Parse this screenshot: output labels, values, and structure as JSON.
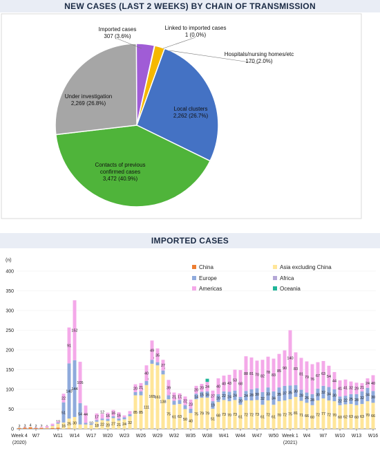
{
  "chart_data": [
    {
      "type": "pie",
      "title": "NEW CASES (LAST 2 WEEKS) BY CHAIN OF TRANSMISSION",
      "slices": [
        {
          "name": "Imported cases",
          "value": 307,
          "value_label": "307",
          "pct_label": "(3.6%)",
          "color": "#a05cd6"
        },
        {
          "name": "Linked to imported cases",
          "value": 1,
          "value_label": "1",
          "pct_label": "(0.0%)",
          "color": "#f2f2f2"
        },
        {
          "name": "Hospitals/nursing homes/etc",
          "value": 170,
          "value_label": "170",
          "pct_label": "(2.0%)",
          "color": "#f5b800"
        },
        {
          "name": "Local clusters",
          "value": 2262,
          "value_label": "2,262",
          "pct_label": "(26.7%)",
          "color": "#4472c4"
        },
        {
          "name": "Contacts of previous confirmed cases",
          "value": 3472,
          "value_label": "3,472",
          "pct_label": "(40.9%)",
          "color": "#4fb43a"
        },
        {
          "name": "Under investigation",
          "value": 2269,
          "value_label": "2,269",
          "pct_label": "(26.8%)",
          "color": "#a6a6a6"
        }
      ]
    },
    {
      "type": "bar",
      "stacked": true,
      "title": "IMPORTED CASES",
      "ylabel": "(n)",
      "ylim": [
        0,
        400
      ],
      "yticks": [
        0,
        50,
        100,
        150,
        200,
        250,
        300,
        350,
        400
      ],
      "xtick_labels": [
        {
          "i": 0,
          "label": "Week 4"
        },
        {
          "i": 3,
          "label": "W7"
        },
        {
          "i": 7,
          "label": "W11"
        },
        {
          "i": 10,
          "label": "W14"
        },
        {
          "i": 13,
          "label": "W17"
        },
        {
          "i": 16,
          "label": "W20"
        },
        {
          "i": 19,
          "label": "W23"
        },
        {
          "i": 22,
          "label": "W26"
        },
        {
          "i": 25,
          "label": "W29"
        },
        {
          "i": 28,
          "label": "W32"
        },
        {
          "i": 31,
          "label": "W35"
        },
        {
          "i": 34,
          "label": "W38"
        },
        {
          "i": 37,
          "label": "W41"
        },
        {
          "i": 40,
          "label": "W44"
        },
        {
          "i": 43,
          "label": "W47"
        },
        {
          "i": 46,
          "label": "W50"
        },
        {
          "i": 49,
          "label": "Week 1"
        },
        {
          "i": 52,
          "label": "W4"
        },
        {
          "i": 55,
          "label": "W7"
        },
        {
          "i": 58,
          "label": "W10"
        },
        {
          "i": 61,
          "label": "W13"
        },
        {
          "i": 64,
          "label": "W16"
        }
      ],
      "year_labels": [
        {
          "i": 0,
          "label": "(2020)"
        },
        {
          "i": 49,
          "label": "(2021)"
        }
      ],
      "legend_position": "top-right",
      "series": [
        {
          "name": "China",
          "color": "#ed7d31",
          "values": [
            2,
            3,
            4,
            2,
            2,
            1,
            2,
            3,
            0,
            1,
            0,
            0,
            0,
            0,
            0,
            0,
            0,
            0,
            0,
            0,
            0,
            0,
            0,
            0,
            0,
            0,
            0,
            0,
            0,
            0,
            0,
            0,
            0,
            0,
            0,
            0,
            0,
            0,
            0,
            0,
            0,
            0,
            0,
            0,
            0,
            0,
            0,
            0,
            0,
            0,
            0,
            0,
            0,
            0,
            0,
            0,
            0,
            0,
            0,
            0,
            0,
            0,
            0,
            0,
            0
          ]
        },
        {
          "name": "Asia excluding China",
          "color": "#ffe699",
          "values": [
            0,
            0,
            0,
            0,
            1,
            2,
            5,
            10,
            16,
            25,
            30,
            11,
            11,
            10,
            18,
            22,
            20,
            27,
            21,
            24,
            32,
            85,
            85,
            111,
            165,
            161,
            138,
            75,
            61,
            63,
            50,
            40,
            75,
            79,
            79,
            51,
            68,
            73,
            70,
            73,
            61,
            72,
            72,
            73,
            61,
            72,
            61,
            70,
            72,
            75,
            81,
            71,
            66,
            60,
            72,
            77,
            72,
            70,
            60,
            62,
            63,
            60,
            63,
            70,
            66
          ]
        },
        {
          "name": "Europe",
          "color": "#8faadc",
          "values": [
            0,
            0,
            0,
            0,
            0,
            0,
            1,
            3,
            51,
            140,
            144,
            54,
            4,
            3,
            4,
            4,
            5,
            5,
            5,
            5,
            5,
            8,
            10,
            10,
            10,
            8,
            10,
            10,
            10,
            10,
            10,
            11,
            14,
            15,
            16,
            19,
            20,
            22,
            24,
            24,
            20,
            24,
            28,
            30,
            32,
            33,
            34,
            35,
            37,
            35,
            30,
            28,
            26,
            28,
            30,
            32,
            34,
            30,
            22,
            22,
            25,
            28,
            32,
            34,
            30
          ]
        },
        {
          "name": "Africa",
          "color": "#b4a7d6",
          "values": [
            0,
            0,
            0,
            0,
            0,
            0,
            0,
            0,
            0,
            0,
            0,
            0,
            0,
            0,
            0,
            0,
            0,
            0,
            0,
            0,
            0,
            0,
            0,
            0,
            0,
            0,
            0,
            0,
            0,
            0,
            0,
            0,
            0,
            0,
            0,
            0,
            0,
            0,
            0,
            0,
            0,
            0,
            0,
            0,
            0,
            0,
            0,
            0,
            0,
            0,
            0,
            0,
            0,
            0,
            0,
            0,
            0,
            0,
            0,
            0,
            0,
            0,
            0,
            0,
            0
          ]
        },
        {
          "name": "Americas",
          "color": "#f4a9e9",
          "values": [
            0,
            1,
            0,
            1,
            2,
            4,
            5,
            3,
            22,
            91,
            152,
            105,
            44,
            0,
            17,
            12,
            16,
            16,
            16,
            5,
            8,
            20,
            21,
            40,
            49,
            35,
            27,
            39,
            21,
            17,
            22,
            23,
            20,
            20,
            24,
            27,
            40,
            40,
            43,
            53,
            68,
            88,
            81,
            70,
            82,
            78,
            83,
            85,
            90,
            140,
            83,
            81,
            79,
            76,
            67,
            63,
            54,
            44,
            41,
            41,
            32,
            29,
            21,
            24,
            40
          ]
        },
        {
          "name": "Oceania",
          "color": "#1fb598",
          "values": [
            0,
            0,
            0,
            0,
            0,
            0,
            0,
            0,
            0,
            0,
            0,
            0,
            0,
            0,
            0,
            0,
            0,
            0,
            0,
            0,
            0,
            0,
            0,
            0,
            0,
            0,
            0,
            0,
            0,
            0,
            0,
            0,
            0,
            0,
            8,
            0,
            0,
            0,
            0,
            0,
            0,
            0,
            0,
            0,
            0,
            0,
            0,
            0,
            0,
            0,
            0,
            0,
            0,
            0,
            0,
            0,
            0,
            0,
            0,
            0,
            0,
            0,
            0,
            0,
            0
          ]
        }
      ]
    }
  ]
}
